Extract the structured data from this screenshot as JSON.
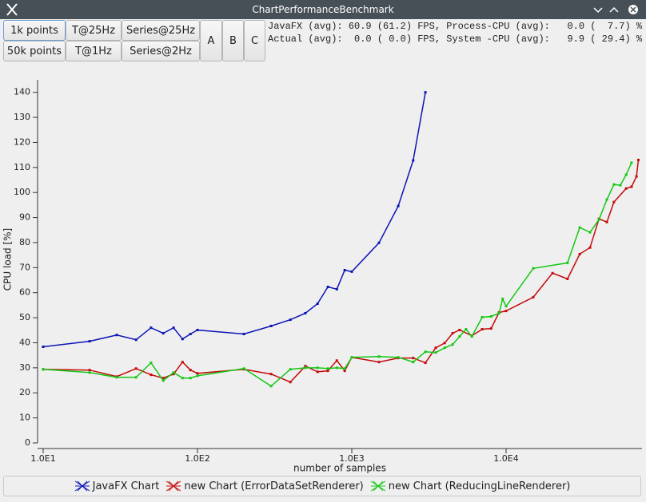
{
  "window": {
    "title": "ChartPerformanceBenchmark"
  },
  "toolbar": {
    "buttons": [
      [
        "1k points",
        "T@25Hz",
        "Series@25Hz"
      ],
      [
        "50k points",
        "T@1Hz",
        "Series@2Hz"
      ]
    ],
    "side_buttons": [
      "A",
      "B",
      "C"
    ]
  },
  "status": [
    "JavaFX (avg): 60.9 (61.2) FPS, Process-CPU (avg):   0.0 (  7.7) %",
    "Actual (avg):  0.0 ( 0.0) FPS, System -CPU (avg):   9.9 ( 29.4) %"
  ],
  "chart_data": {
    "type": "line",
    "xlabel": "number of samples",
    "ylabel": "CPU load [%]",
    "xscale": "log",
    "xlim": [
      9.2,
      76000
    ],
    "ylim": [
      0,
      145
    ],
    "xticks": [
      {
        "value": 10,
        "label": "1.0E1"
      },
      {
        "value": 100,
        "label": "1.0E2"
      },
      {
        "value": 1000,
        "label": "1.0E3"
      },
      {
        "value": 10000,
        "label": "1.0E4"
      }
    ],
    "yticks": [
      0,
      10,
      20,
      30,
      40,
      50,
      60,
      70,
      80,
      90,
      100,
      110,
      120,
      130,
      140
    ],
    "legend": "bottom",
    "series": [
      {
        "name": "JavaFX Chart",
        "color": "#0a14b4",
        "x": [
          10,
          20,
          30,
          40,
          50,
          60,
          70,
          80,
          90,
          100,
          200,
          300,
          400,
          500,
          600,
          700,
          800,
          900,
          1000,
          1500,
          2000,
          2500,
          3000
        ],
        "values": [
          38.4,
          40.6,
          43.1,
          41.2,
          46.0,
          43.8,
          46.0,
          41.5,
          43.5,
          45.1,
          43.5,
          46.7,
          49.2,
          51.8,
          55.6,
          62.3,
          61.4,
          69.0,
          68.4,
          79.9,
          94.6,
          112.8,
          140
        ]
      },
      {
        "name": "new Chart (ErrorDataSetRenderer)",
        "color": "#c40a0a",
        "x": [
          10,
          20,
          30,
          40,
          50,
          60,
          70,
          80,
          90,
          100,
          200,
          300,
          400,
          500,
          600,
          700,
          800,
          900,
          1000,
          1500,
          2000,
          2500,
          3000,
          3500,
          4000,
          4500,
          5000,
          6000,
          7000,
          8000,
          9000,
          10000,
          15000,
          20000,
          25000,
          30000,
          35000,
          40000,
          45000,
          50000,
          60000,
          65000,
          70000,
          72000
        ],
        "values": [
          29.4,
          29.1,
          26.5,
          29.7,
          27.2,
          25.9,
          27.5,
          32.3,
          29.1,
          27.8,
          29.4,
          27.5,
          24.3,
          30.7,
          28.4,
          28.8,
          32.9,
          28.8,
          34.2,
          32.3,
          33.9,
          33.9,
          32.0,
          38.0,
          39.9,
          43.8,
          45.1,
          42.8,
          45.4,
          45.7,
          52.1,
          52.7,
          58.2,
          67.8,
          65.5,
          75.4,
          78.0,
          89.5,
          88.2,
          96.2,
          101.6,
          102.3,
          106.4,
          113
        ]
      },
      {
        "name": "new Chart (ReducingLineRenderer)",
        "color": "#14c814",
        "x": [
          10,
          20,
          30,
          40,
          50,
          60,
          70,
          80,
          90,
          100,
          200,
          300,
          400,
          500,
          600,
          700,
          800,
          900,
          1000,
          1500,
          2000,
          2500,
          3000,
          3500,
          4000,
          4500,
          5000,
          5500,
          6000,
          7000,
          8000,
          9000,
          9500,
          10000,
          15000,
          25000,
          30000,
          35000,
          40000,
          45000,
          50000,
          55000,
          60000,
          65000
        ],
        "values": [
          29.4,
          28.1,
          26.2,
          26.2,
          32.0,
          24.9,
          28.1,
          25.9,
          25.9,
          26.8,
          29.7,
          22.7,
          29.4,
          30.0,
          30.0,
          29.7,
          30.0,
          29.7,
          34.2,
          34.5,
          34.2,
          32.3,
          36.4,
          36.1,
          38.0,
          39.3,
          42.5,
          45.4,
          42.5,
          50.2,
          50.5,
          51.8,
          57.5,
          54.6,
          69.7,
          71.9,
          86.0,
          84.1,
          89.2,
          97.2,
          103.2,
          102.9,
          107.1,
          111.9
        ]
      }
    ]
  }
}
